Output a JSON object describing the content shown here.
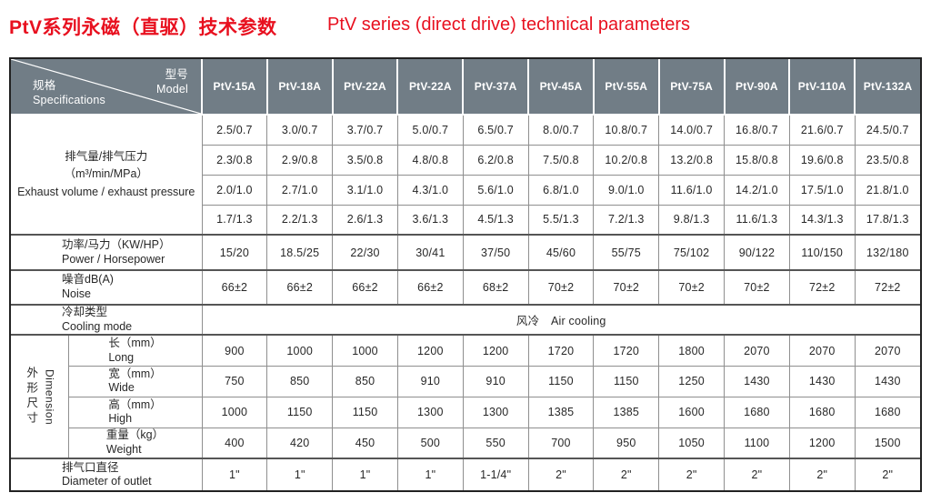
{
  "title": {
    "zh": "PtV系列永磁（直驱）技术参数",
    "en": "PtV series (direct drive) technical parameters"
  },
  "colors": {
    "title_red": "#e8101f",
    "header_bg": "#717d86",
    "header_text": "#ffffff",
    "outer_border": "#222222",
    "grid_line": "#8f8f8f"
  },
  "table": {
    "corner": {
      "model_zh": "型号",
      "model_en": "Model",
      "spec_zh": "规格",
      "spec_en": "Specifications"
    },
    "models": [
      "PtV-15A",
      "PtV-18A",
      "PtV-22A",
      "PtV-22A",
      "PtV-37A",
      "PtV-45A",
      "PtV-55A",
      "PtV-75A",
      "PtV-90A",
      "PtV-110A",
      "PtV-132A"
    ],
    "sections": [
      {
        "id": "exhaust",
        "type": "group",
        "label_lines": [
          "排气量/排气压力",
          "（m³/min/MPa）",
          "Exhaust volume / exhaust pressure"
        ],
        "rows": [
          {
            "values": [
              "2.5/0.7",
              "3.0/0.7",
              "3.7/0.7",
              "5.0/0.7",
              "6.5/0.7",
              "8.0/0.7",
              "10.8/0.7",
              "14.0/0.7",
              "16.8/0.7",
              "21.6/0.7",
              "24.5/0.7"
            ]
          },
          {
            "values": [
              "2.3/0.8",
              "2.9/0.8",
              "3.5/0.8",
              "4.8/0.8",
              "6.2/0.8",
              "7.5/0.8",
              "10.2/0.8",
              "13.2/0.8",
              "15.8/0.8",
              "19.6/0.8",
              "23.5/0.8"
            ]
          },
          {
            "values": [
              "2.0/1.0",
              "2.7/1.0",
              "3.1/1.0",
              "4.3/1.0",
              "5.6/1.0",
              "6.8/1.0",
              "9.0/1.0",
              "11.6/1.0",
              "14.2/1.0",
              "17.5/1.0",
              "21.8/1.0"
            ]
          },
          {
            "values": [
              "1.7/1.3",
              "2.2/1.3",
              "2.6/1.3",
              "3.6/1.3",
              "4.5/1.3",
              "5.5/1.3",
              "7.2/1.3",
              "9.8/1.3",
              "11.6/1.3",
              "14.3/1.3",
              "17.8/1.3"
            ]
          }
        ]
      },
      {
        "id": "power",
        "type": "simple",
        "label_zh": "功率/马力（KW/HP）",
        "label_en": "Power / Horsepower",
        "values": [
          "15/20",
          "18.5/25",
          "22/30",
          "30/41",
          "37/50",
          "45/60",
          "55/75",
          "75/102",
          "90/122",
          "110/150",
          "132/180"
        ]
      },
      {
        "id": "noise",
        "type": "simple",
        "label_zh": "噪音dB(A)",
        "label_en": "Noise",
        "values": [
          "66±2",
          "66±2",
          "66±2",
          "66±2",
          "68±2",
          "70±2",
          "70±2",
          "70±2",
          "70±2",
          "72±2",
          "72±2"
        ]
      },
      {
        "id": "cooling",
        "type": "span",
        "label_zh": "冷却类型",
        "label_en": "Cooling mode",
        "value": "风冷　Air cooling"
      },
      {
        "id": "dimension",
        "type": "vgroup",
        "vlabel_zh": "外形尺寸",
        "vlabel_en": "Dimension",
        "rows": [
          {
            "label_zh": "长（mm）",
            "label_en": "Long",
            "values": [
              "900",
              "1000",
              "1000",
              "1200",
              "1200",
              "1720",
              "1720",
              "1800",
              "2070",
              "2070",
              "2070"
            ]
          },
          {
            "label_zh": "宽（mm）",
            "label_en": "Wide",
            "values": [
              "750",
              "850",
              "850",
              "910",
              "910",
              "1150",
              "1150",
              "1250",
              "1430",
              "1430",
              "1430"
            ]
          },
          {
            "label_zh": "高（mm）",
            "label_en": "High",
            "values": [
              "1000",
              "1150",
              "1150",
              "1300",
              "1300",
              "1385",
              "1385",
              "1600",
              "1680",
              "1680",
              "1680"
            ]
          },
          {
            "label_zh": "重量（kg）",
            "label_en": "Weight",
            "values": [
              "400",
              "420",
              "450",
              "500",
              "550",
              "700",
              "950",
              "1050",
              "1100",
              "1200",
              "1500"
            ]
          }
        ]
      },
      {
        "id": "outlet",
        "type": "simple",
        "label_zh": "排气口直径",
        "label_en": "Diameter of outlet",
        "values": [
          "1\"",
          "1\"",
          "1\"",
          "1\"",
          "1-1/4\"",
          "2\"",
          "2\"",
          "2\"",
          "2\"",
          "2\"",
          "2\""
        ]
      }
    ]
  }
}
